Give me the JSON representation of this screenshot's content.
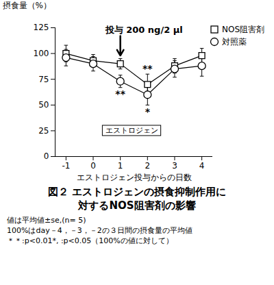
{
  "chart_data": {
    "type": "line",
    "title": "図２ エストロジェンの摂食抑制作用に対するNOS阻害剤の影響",
    "notes": [
      "値は平均値±se,(n= 5)",
      "100%はday－4，－3，－2の３日間の摂食量の平均値",
      "＊＊:p<0.01*, :p<0.05（100%の値に対して）"
    ],
    "x_label": "エストロジェン投与からの日数",
    "y_label": "摂食量（%）",
    "x": [
      -1,
      0,
      1,
      2,
      3,
      4
    ],
    "xlim": [
      -1.4,
      4.4
    ],
    "xticks": [
      -1,
      0,
      1,
      2,
      3,
      4
    ],
    "ylim": [
      0,
      125
    ],
    "yticks": [
      0,
      25,
      50,
      75,
      100,
      125
    ],
    "legend": "top-right",
    "series": [
      {
        "name": "NOS阻害剤",
        "color": "#000000",
        "marker": "square",
        "line_style": "solid",
        "values": [
          100,
          93,
          90,
          70,
          88,
          98
        ],
        "errors": [
          8,
          6,
          5,
          10,
          7,
          7
        ],
        "significance": [
          null,
          null,
          null,
          "**",
          null,
          null
        ]
      },
      {
        "name": "対照薬",
        "color": "#000000",
        "marker": "circle",
        "line_style": "solid",
        "values": [
          96,
          90,
          73,
          60,
          85,
          88
        ],
        "errors": [
          8,
          7,
          6,
          10,
          8,
          10
        ],
        "significance": [
          null,
          null,
          "**",
          "*",
          null,
          null
        ]
      }
    ],
    "annotations": [
      {
        "text": "投与 200 ng/2 μl",
        "x": 1,
        "y": 117
      }
    ],
    "period": {
      "label": "エストロジェン",
      "x": [
        0.35,
        2.5
      ],
      "y": 25
    }
  }
}
